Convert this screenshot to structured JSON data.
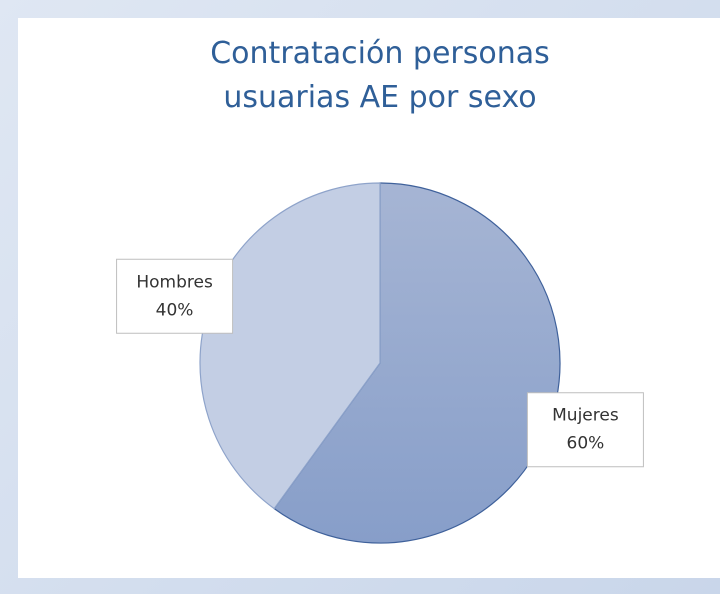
{
  "chart_data": {
    "type": "pie",
    "title": "Contratación personas usuarias AE por sexo",
    "categories": [
      "Mujeres",
      "Hombres"
    ],
    "values": [
      60,
      40
    ],
    "value_labels": [
      "60%",
      "40%"
    ],
    "colors": [
      "#96a9cf",
      "#c3cee4"
    ]
  }
}
